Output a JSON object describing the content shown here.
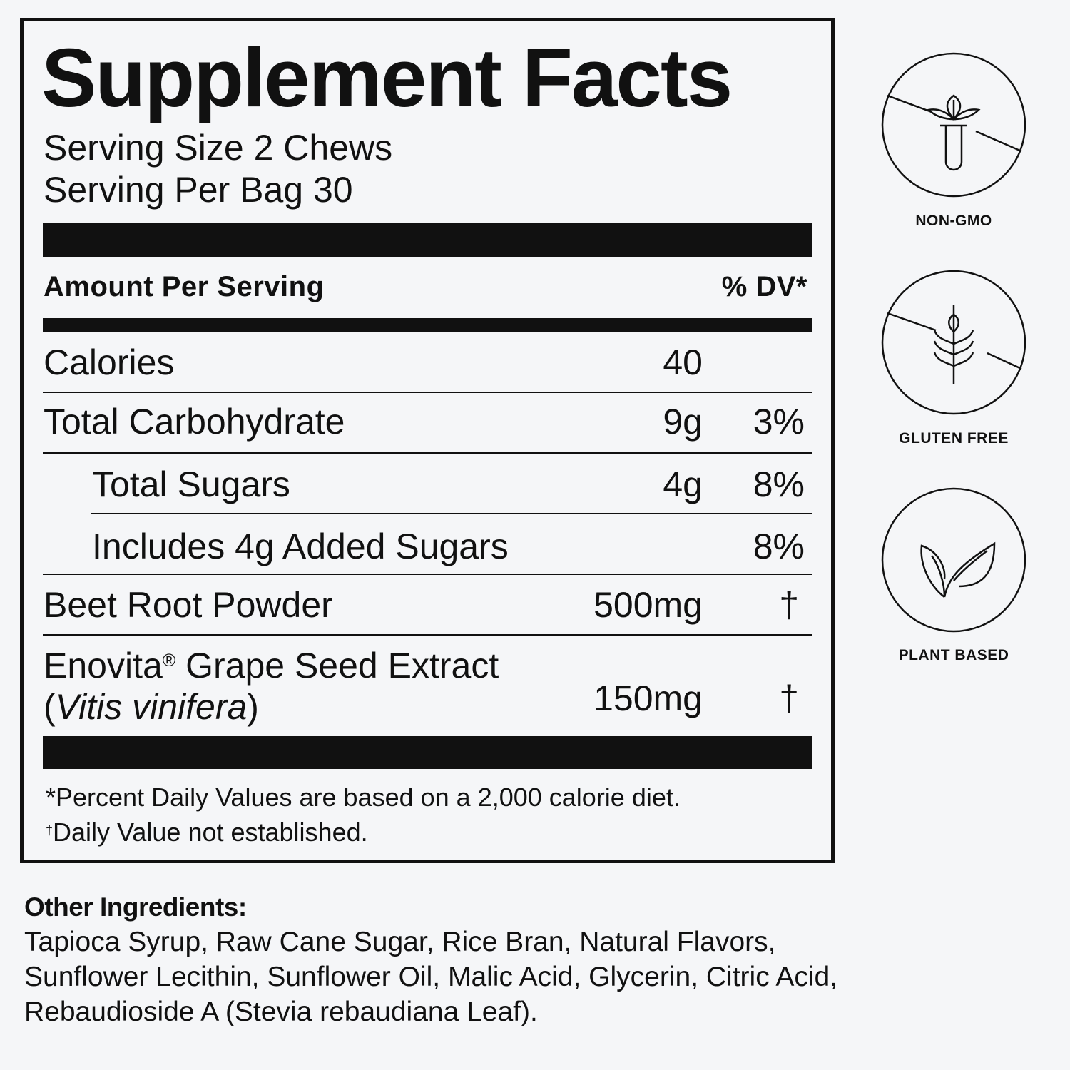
{
  "label": {
    "title": "Supplement Facts",
    "serving_size": "Serving Size 2 Chews",
    "servings_per": "Serving Per Bag 30",
    "header_amount": "Amount Per Serving",
    "header_dv": "% DV*",
    "rows": [
      {
        "name": "Calories",
        "amount": "40",
        "dv": ""
      },
      {
        "name": "Total Carbohydrate",
        "amount": "9g",
        "dv": "3%"
      },
      {
        "name": "Total Sugars",
        "amount": "4g",
        "dv": "8%"
      },
      {
        "name": "Includes 4g Added Sugars",
        "amount": "",
        "dv": "8%"
      },
      {
        "name": "Beet Root Powder",
        "amount": "500mg",
        "dv": "†"
      },
      {
        "name": "Enovita",
        "name_mark": "®",
        "name_rest": " Grape Seed Extract",
        "latin_open": "(",
        "latin": "Vitis vinifera",
        "latin_close": ")",
        "amount": "150mg",
        "dv": "†"
      }
    ],
    "footnote_1": "*Percent Daily Values are based on a 2,000 calorie diet.",
    "footnote_2_mark": "†",
    "footnote_2": "Daily Value not established."
  },
  "other_ingredients": {
    "heading": "Other Ingredients:",
    "lines": [
      "Tapioca Syrup, Raw Cane Sugar, Rice Bran, Natural Flavors,",
      "Sunflower Lecithin, Sunflower Oil, Malic Acid, Glycerin, Citric Acid,",
      "Rebaudioside A (Stevia rebaudiana Leaf)."
    ]
  },
  "badges": [
    {
      "icon": "non-gmo-icon",
      "label": "NON-GMO"
    },
    {
      "icon": "gluten-free-icon",
      "label": "GLUTEN FREE"
    },
    {
      "icon": "plant-based-icon",
      "label": "PLANT BASED"
    }
  ]
}
